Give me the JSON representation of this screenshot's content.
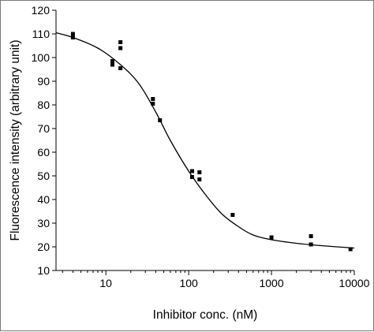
{
  "chart_data": {
    "type": "scatter",
    "xlabel": "Inhibitor conc. (nM)",
    "ylabel": "Fluorescence intensity (arbitrary unit)",
    "x_scale": "log",
    "xlim": [
      2.5,
      10000
    ],
    "ylim": [
      10,
      120
    ],
    "x_ticks": [
      10,
      100,
      1000,
      10000
    ],
    "x_tick_labels": [
      "10",
      "100",
      "1000",
      "10000"
    ],
    "y_ticks": [
      10,
      20,
      30,
      40,
      50,
      60,
      70,
      80,
      90,
      100,
      110,
      120
    ],
    "y_tick_labels": [
      "10",
      "20",
      "30",
      "40",
      "50",
      "60",
      "70",
      "80",
      "90",
      "100",
      "110",
      "120"
    ],
    "grid": false,
    "series": [
      {
        "type": "scatter",
        "marker": "square",
        "color": "#000000",
        "x": [
          4,
          4,
          12,
          12,
          15,
          15,
          15,
          37,
          37,
          45,
          110,
          110,
          135,
          135,
          340,
          1000,
          3000,
          3000,
          9000
        ],
        "y": [
          108.5,
          110,
          97,
          98.5,
          106.5,
          104,
          95.5,
          80.5,
          82.5,
          73.5,
          52,
          49.5,
          51.5,
          48.5,
          33.5,
          24,
          24.5,
          21,
          19
        ]
      },
      {
        "type": "line",
        "color": "#000000",
        "x": [
          2.5,
          4,
          8,
          15,
          25,
          40,
          60,
          100,
          160,
          250,
          400,
          600,
          1000,
          2000,
          4000,
          10000
        ],
        "y": [
          110.5,
          108.5,
          104,
          97,
          89,
          77,
          65,
          52,
          42,
          34,
          28.5,
          25,
          23,
          21.5,
          20.5,
          19.5
        ]
      }
    ]
  }
}
